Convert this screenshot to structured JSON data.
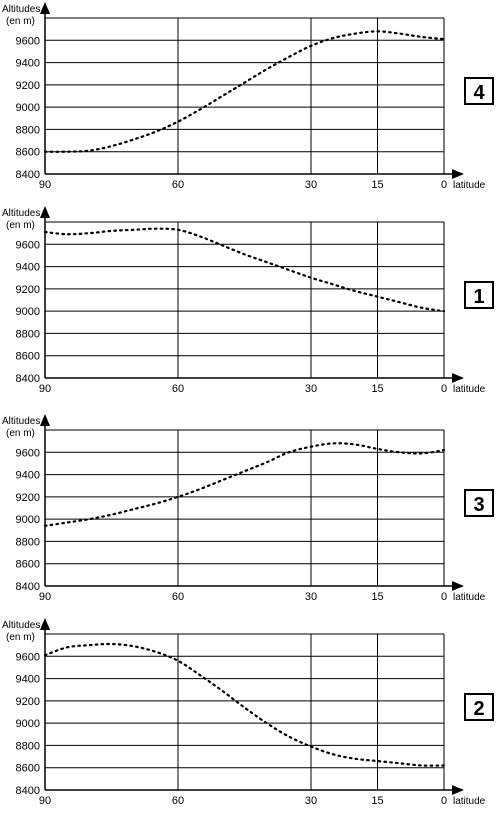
{
  "chart_data": [
    {
      "type": "line",
      "badge": "4",
      "ylabel": [
        "Altitudes",
        "(en m)"
      ],
      "xlabel": "latitude",
      "x_ticks": [
        90,
        60,
        30,
        15,
        0
      ],
      "y_ticks": [
        8400,
        8600,
        8800,
        9000,
        9200,
        9400,
        9600
      ],
      "xlim": [
        90,
        0
      ],
      "ylim": [
        8400,
        9800
      ],
      "grid": true,
      "series": [
        {
          "x": [
            90,
            85,
            80,
            75,
            70,
            65,
            60,
            55,
            50,
            45,
            40,
            35,
            30,
            25,
            20,
            15,
            10,
            5,
            0
          ],
          "y": [
            8600,
            8600,
            8610,
            8650,
            8710,
            8780,
            8870,
            8980,
            9100,
            9220,
            9340,
            9450,
            9550,
            9620,
            9660,
            9680,
            9660,
            9630,
            9610
          ]
        }
      ]
    },
    {
      "type": "line",
      "badge": "1",
      "ylabel": [
        "Altitudes",
        "(en m)"
      ],
      "xlabel": "latitude",
      "x_ticks": [
        90,
        60,
        30,
        15,
        0
      ],
      "y_ticks": [
        8400,
        8600,
        8800,
        9000,
        9200,
        9400,
        9600
      ],
      "xlim": [
        90,
        0
      ],
      "ylim": [
        8400,
        9800
      ],
      "grid": true,
      "series": [
        {
          "x": [
            90,
            85,
            80,
            75,
            70,
            65,
            60,
            55,
            50,
            45,
            40,
            35,
            30,
            25,
            20,
            15,
            10,
            5,
            0
          ],
          "y": [
            9710,
            9690,
            9700,
            9720,
            9730,
            9740,
            9730,
            9670,
            9590,
            9510,
            9440,
            9370,
            9300,
            9240,
            9180,
            9130,
            9080,
            9030,
            9000
          ]
        }
      ]
    },
    {
      "type": "line",
      "badge": "3",
      "ylabel": [
        "Altitudes",
        "(en m)"
      ],
      "xlabel": "latitude",
      "x_ticks": [
        90,
        60,
        30,
        15,
        0
      ],
      "y_ticks": [
        8400,
        8600,
        8800,
        9000,
        9200,
        9400,
        9600
      ],
      "xlim": [
        90,
        0
      ],
      "ylim": [
        8400,
        9800
      ],
      "grid": true,
      "series": [
        {
          "x": [
            90,
            85,
            80,
            75,
            70,
            65,
            60,
            55,
            50,
            45,
            40,
            35,
            30,
            25,
            20,
            15,
            10,
            5,
            0
          ],
          "y": [
            8940,
            8970,
            9000,
            9040,
            9090,
            9140,
            9200,
            9270,
            9350,
            9430,
            9510,
            9600,
            9650,
            9680,
            9670,
            9630,
            9600,
            9590,
            9620
          ]
        }
      ]
    },
    {
      "type": "line",
      "badge": "2",
      "ylabel": [
        "Altitudes",
        "(en m)"
      ],
      "xlabel": "latitude",
      "x_ticks": [
        90,
        60,
        30,
        15,
        0
      ],
      "y_ticks": [
        8400,
        8600,
        8800,
        9000,
        9200,
        9400,
        9600
      ],
      "xlim": [
        90,
        0
      ],
      "ylim": [
        8400,
        9800
      ],
      "grid": true,
      "series": [
        {
          "x": [
            90,
            85,
            80,
            75,
            70,
            65,
            60,
            55,
            50,
            45,
            40,
            35,
            30,
            25,
            20,
            15,
            10,
            5,
            0
          ],
          "y": [
            9610,
            9680,
            9700,
            9710,
            9690,
            9640,
            9560,
            9430,
            9290,
            9140,
            9000,
            8880,
            8790,
            8720,
            8680,
            8660,
            8640,
            8620,
            8620
          ]
        }
      ]
    }
  ],
  "colors": {
    "line": "#000000",
    "grid": "#000000",
    "background": "#ffffff"
  }
}
